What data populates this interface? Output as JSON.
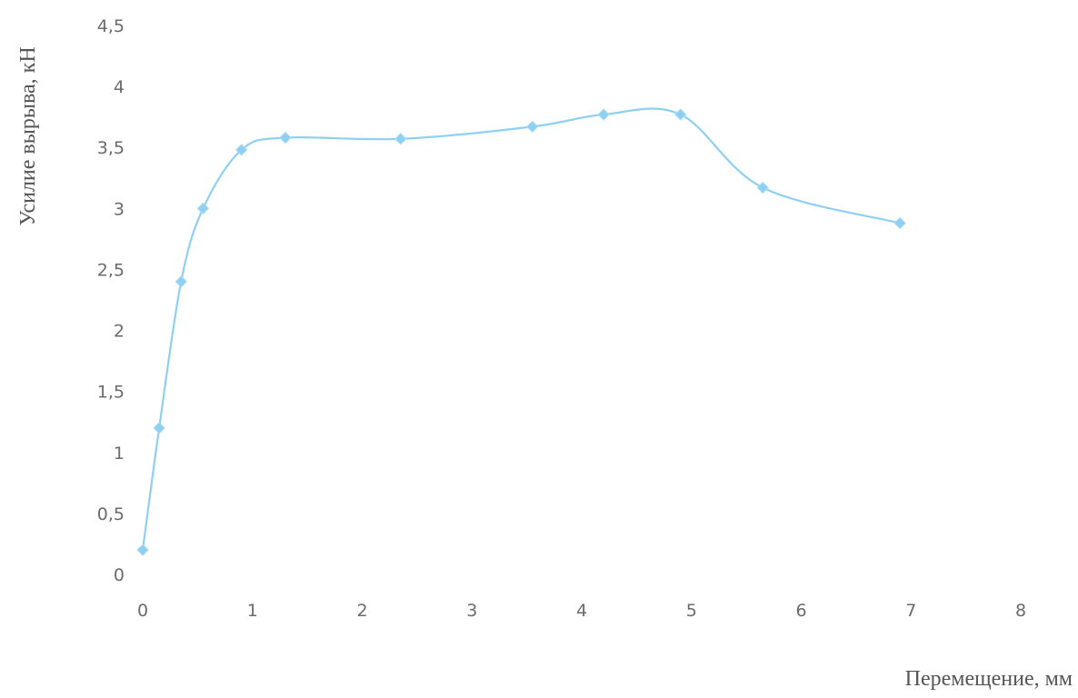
{
  "chart_data": {
    "type": "line",
    "title": "",
    "xlabel": "Перемещение, мм",
    "ylabel": "Усилие вырыва, кН",
    "xlim": [
      0,
      8
    ],
    "ylim": [
      0,
      4.5
    ],
    "x_ticks": [
      0,
      1,
      2,
      3,
      4,
      5,
      6,
      7,
      8
    ],
    "y_ticks": [
      0,
      0.5,
      1,
      1.5,
      2,
      2.5,
      3,
      3.5,
      4,
      4.5
    ],
    "x_tick_labels": [
      "0",
      "1",
      "2",
      "3",
      "4",
      "5",
      "6",
      "7",
      "8"
    ],
    "y_tick_labels": [
      "0",
      "0,5",
      "1",
      "1,5",
      "2",
      "2,5",
      "3",
      "3,5",
      "4",
      "4,5"
    ],
    "grid": false,
    "legend": "none",
    "smooth": true,
    "marker": "diamond",
    "series": [
      {
        "color": "#8fd0f2",
        "x": [
          0.0,
          0.15,
          0.35,
          0.55,
          0.9,
          1.3,
          2.35,
          3.55,
          4.2,
          4.9,
          5.65,
          6.9
        ],
        "y": [
          0.2,
          1.2,
          2.4,
          3.0,
          3.48,
          3.58,
          3.57,
          3.67,
          3.77,
          3.77,
          3.17,
          2.88
        ]
      }
    ]
  }
}
